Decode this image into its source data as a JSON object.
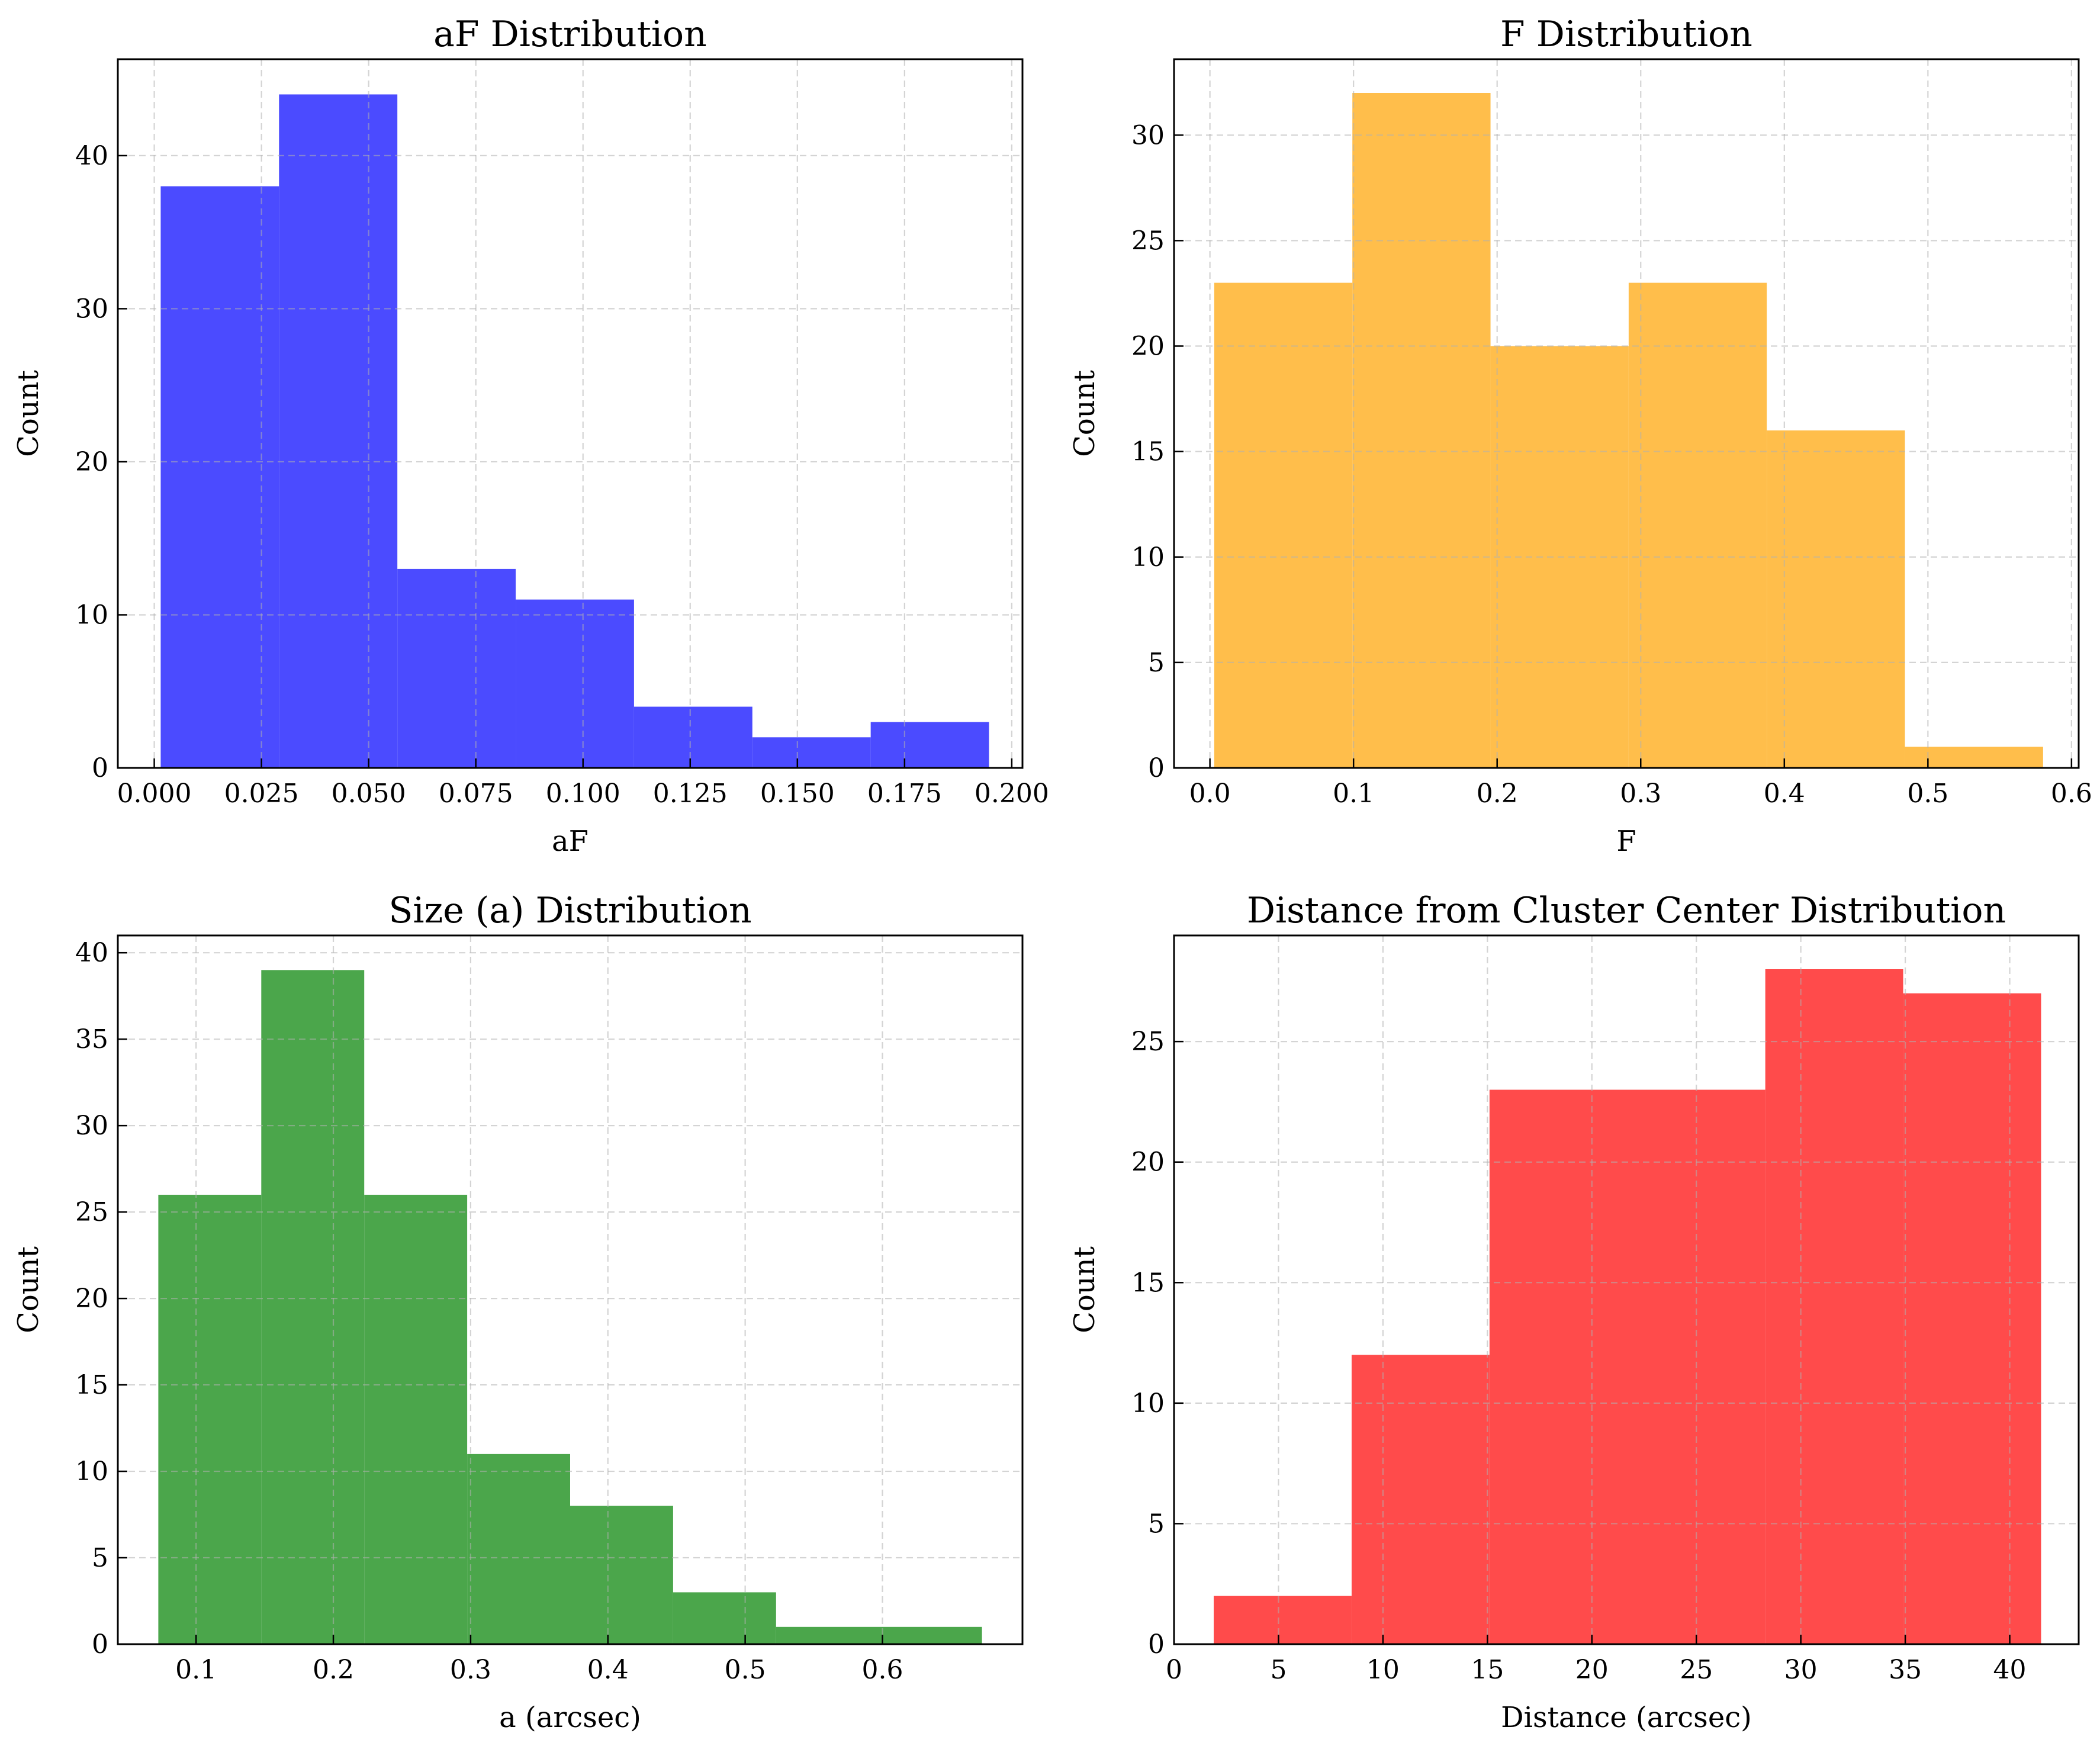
{
  "chart_data": [
    {
      "type": "bar",
      "title": "aF Distribution",
      "xlabel": "aF",
      "ylabel": "Count",
      "color": "#4b4bff",
      "xlim": [
        -0.0085,
        0.2025
      ],
      "ylim": [
        0,
        46.3
      ],
      "xticks": [
        0.0,
        0.025,
        0.05,
        0.075,
        0.1,
        0.125,
        0.15,
        0.175,
        0.2
      ],
      "xtick_labels": [
        "0.000",
        "0.025",
        "0.050",
        "0.075",
        "0.100",
        "0.125",
        "0.150",
        "0.175",
        "0.200"
      ],
      "yticks": [
        0,
        10,
        20,
        30,
        40
      ],
      "ytick_labels": [
        "0",
        "10",
        "20",
        "30",
        "40"
      ],
      "bin_edges": [
        0.0015,
        0.0291,
        0.0567,
        0.0843,
        0.1119,
        0.1395,
        0.1671,
        0.1947
      ],
      "values": [
        38,
        44,
        13,
        11,
        4,
        2,
        3
      ],
      "grid": true
    },
    {
      "type": "bar",
      "title": "F Distribution",
      "xlabel": "F",
      "ylabel": "Count",
      "color": "#ffbe4b",
      "xlim": [
        -0.025,
        0.605
      ],
      "ylim": [
        0,
        33.6
      ],
      "xticks": [
        0.0,
        0.1,
        0.2,
        0.3,
        0.4,
        0.5,
        0.6
      ],
      "xtick_labels": [
        "0.0",
        "0.1",
        "0.2",
        "0.3",
        "0.4",
        "0.5",
        "0.6"
      ],
      "yticks": [
        0,
        5,
        10,
        15,
        20,
        25,
        30
      ],
      "ytick_labels": [
        "0",
        "5",
        "10",
        "15",
        "20",
        "25",
        "30"
      ],
      "bin_edges": [
        0.003,
        0.0992,
        0.1954,
        0.2916,
        0.3878,
        0.484,
        0.5802
      ],
      "values": [
        23,
        32,
        20,
        23,
        16,
        1
      ],
      "grid": true
    },
    {
      "type": "bar",
      "title": "Size (a) Distribution",
      "xlabel": "a (arcsec)",
      "ylabel": "Count",
      "color": "#4ba64b",
      "xlim": [
        0.043,
        0.702
      ],
      "ylim": [
        0,
        41
      ],
      "xticks": [
        0.1,
        0.2,
        0.3,
        0.4,
        0.5,
        0.6
      ],
      "xtick_labels": [
        "0.1",
        "0.2",
        "0.3",
        "0.4",
        "0.5",
        "0.6"
      ],
      "yticks": [
        0,
        5,
        10,
        15,
        20,
        25,
        30,
        35,
        40
      ],
      "ytick_labels": [
        "0",
        "5",
        "10",
        "15",
        "20",
        "25",
        "30",
        "35",
        "40"
      ],
      "bin_edges": [
        0.0725,
        0.1475,
        0.2225,
        0.2975,
        0.3725,
        0.4475,
        0.5225,
        0.6725
      ],
      "values": [
        26,
        39,
        26,
        11,
        8,
        3,
        1
      ],
      "grid": true
    },
    {
      "type": "bar",
      "title": "Distance from Cluster Center Distribution",
      "xlabel": "Distance (arcsec)",
      "ylabel": "Count",
      "color": "#ff4b4b",
      "xlim": [
        0,
        43.3
      ],
      "ylim": [
        0,
        29.4
      ],
      "xticks": [
        0,
        5,
        10,
        15,
        20,
        25,
        30,
        35,
        40
      ],
      "xtick_labels": [
        "0",
        "5",
        "10",
        "15",
        "20",
        "25",
        "30",
        "35",
        "40"
      ],
      "yticks": [
        0,
        5,
        10,
        15,
        20,
        25
      ],
      "ytick_labels": [
        "0",
        "5",
        "10",
        "15",
        "20",
        "25"
      ],
      "bin_edges": [
        1.9,
        8.5,
        15.1,
        28.3,
        34.9,
        41.5
      ],
      "values": [
        2,
        12,
        23,
        28,
        27
      ],
      "grid": true
    }
  ]
}
